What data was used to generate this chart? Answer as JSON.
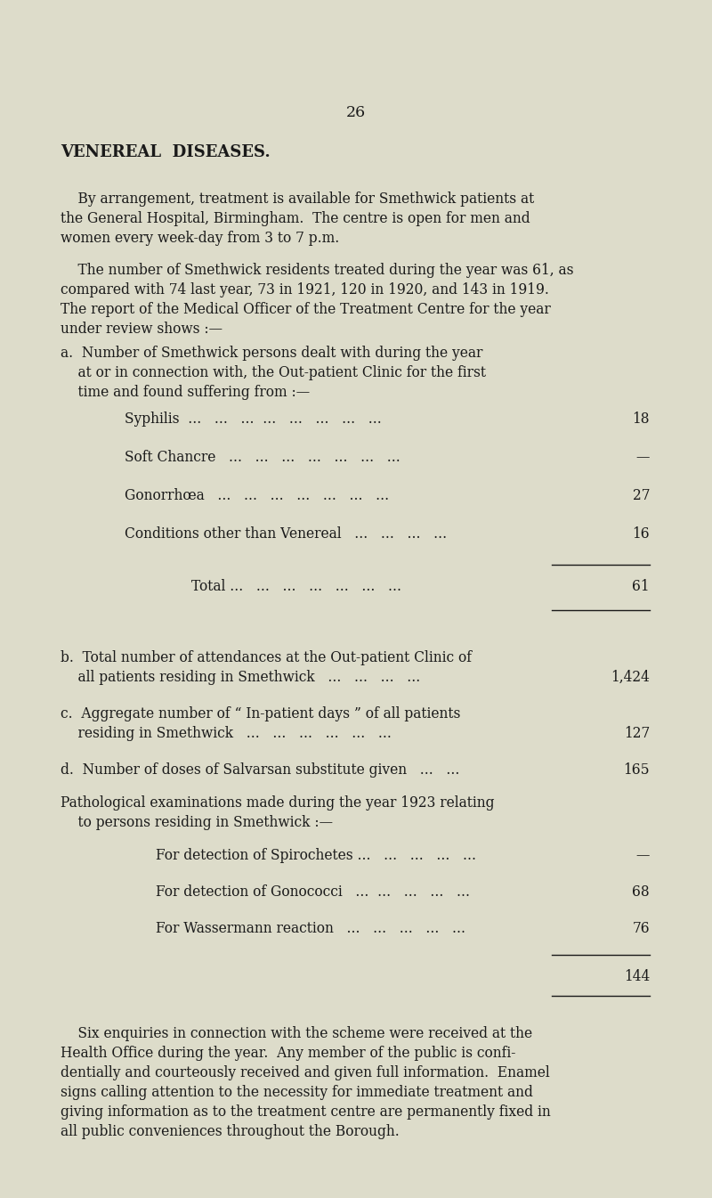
{
  "bg_color": "#dddcca",
  "text_color": "#1a1a1a",
  "page_number": "26",
  "title": "VENEREAL  DISEASES.",
  "para1": "    By arrangement, treatment is available for Smethwick patients at\nthe General Hospital, Birmingham.  The centre is open for men and\nwomen every week-day from 3 to 7 p.m.",
  "para2": "    The number of Smethwick residents treated during the year was 61, as\ncompared with 74 last year, 73 in 1921, 120 in 1920, and 143 in 1919.\nThe report of the Medical Officer of the Treatment Centre for the year\nunder review shows :—",
  "section_a_line1": "a.  Number of Smethwick persons dealt with during the year",
  "section_a_line2": "    at or in connection with, the Out-patient Clinic for the first",
  "section_a_line3": "    time and found suffering from :—",
  "items_a_labels": [
    "Syphilis  ...   ...   ...  ...   ...   ...   ...   ...",
    "Soft Chancre   ...   ...   ...   ...   ...   ...   ...",
    "Gonorrhœa   ...   ...   ...   ...   ...   ...   ...",
    "Conditions other than Venereal   ...   ...   ...   ..."
  ],
  "items_a_values": [
    "18",
    "—",
    "27",
    "16"
  ],
  "total_a_label": "Total ...   ...   ...   ...   ...   ...   ...",
  "total_a_value": "61",
  "section_b_line1": "b.  Total number of attendances at the Out-patient Clinic of",
  "section_b_line2": "    all patients residing in Smethwick   ...   ...   ...   ...",
  "section_b_value": "1,424",
  "section_c_line1": "c.  Aggregate number of “ In-patient days ” of all patients",
  "section_c_line2": "    residing in Smethwick   ...   ...   ...   ...   ...   ...",
  "section_c_value": "127",
  "section_d_line1": "d.  Number of doses of Salvarsan substitute given   ...   ...",
  "section_d_value": "165",
  "path_header_line1": "Pathological examinations made during the year 1923 relating",
  "path_header_line2": "    to persons residing in Smethwick :—",
  "items_path_labels": [
    "For detection of Spirochetes ...   ...   ...   ...   ...",
    "For detection of Gonococci   ...  ...   ...   ...   ...",
    "For Wassermann reaction   ...   ...   ...   ...   ..."
  ],
  "items_path_values": [
    "—",
    "68",
    "76"
  ],
  "total_path_value": "144",
  "para3_line1": "    Six enquiries in connection with the scheme were received at the",
  "para3_line2": "Health Office during the year.  Any member of the public is confi­",
  "para3_line3": "dentially and courteously received and given full information.  Enamel",
  "para3_line4": "signs calling attention to the necessity for immediate treatment and",
  "para3_line5": "giving information as to the treatment centre are permanently fixed in",
  "para3_line6": "all public conveniences throughout the Borough.",
  "fig_w": 800,
  "fig_h": 1345,
  "dpi": 100
}
